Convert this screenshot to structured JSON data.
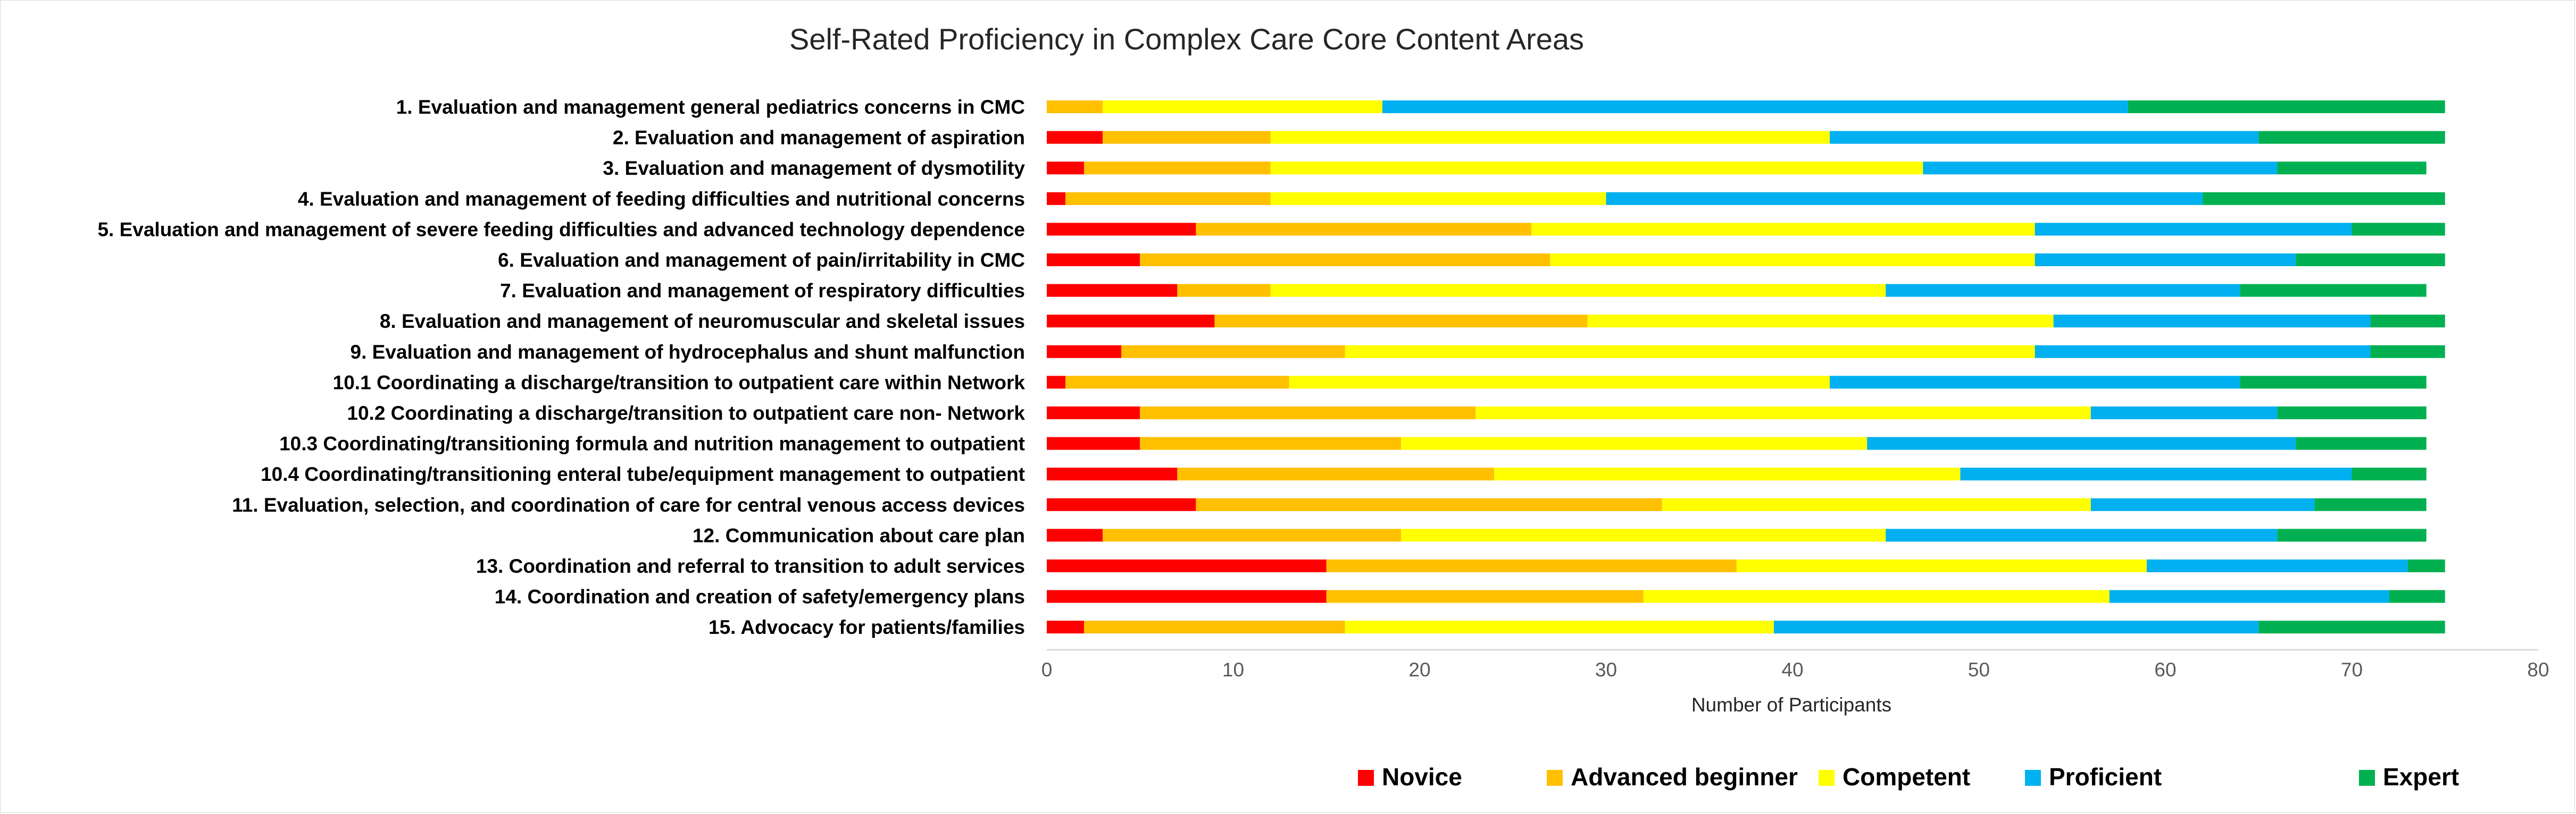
{
  "chart_data": {
    "type": "bar",
    "orientation": "horizontal",
    "stacked": true,
    "title": "Self-Rated Proficiency in Complex Care Core Content Areas",
    "xlabel": "Number of Participants",
    "ylabel": "",
    "xlim": [
      0,
      80
    ],
    "x_ticks": [
      "0",
      "10",
      "20",
      "30",
      "40",
      "50",
      "60",
      "70",
      "80"
    ],
    "grid": false,
    "legend_position": "bottom-right",
    "categories": [
      "1. Evaluation and management general pediatrics concerns in CMC",
      "2. Evaluation and management of aspiration",
      "3.  Evaluation and management of dysmotility",
      "4.  Evaluation and management of feeding difficulties and nutritional concerns",
      "5. Evaluation and management of severe feeding difficulties and advanced technology dependence",
      "6. Evaluation and management of pain/irritability in CMC",
      "7. Evaluation and management of respiratory difficulties",
      "8. Evaluation and management of neuromuscular and skeletal issues",
      "9. Evaluation and management of hydrocephalus and shunt malfunction",
      "10.1 Coordinating a discharge/transition to outpatient care within  Network",
      "10.2 Coordinating a discharge/transition to outpatient care non- Network",
      "10.3 Coordinating/transitioning formula and nutrition management to outpatient",
      "10.4 Coordinating/transitioning enteral tube/equipment management to outpatient",
      "11. Evaluation, selection, and coordination of care for central venous access devices",
      "12. Communication about care plan",
      "13. Coordination and referral to transition to adult services",
      "14. Coordination and creation of safety/emergency plans",
      "15. Advocacy for patients/families"
    ],
    "series": [
      {
        "name": "Novice",
        "color": "#ff0000",
        "values": [
          0,
          3,
          2,
          1,
          8,
          5,
          7,
          9,
          4,
          1,
          5,
          5,
          7,
          8,
          3,
          15,
          15,
          2
        ]
      },
      {
        "name": "Advanced beginner",
        "color": "#ffc000",
        "values": [
          3,
          9,
          10,
          11,
          18,
          22,
          5,
          20,
          12,
          12,
          18,
          14,
          17,
          25,
          16,
          22,
          17,
          14
        ]
      },
      {
        "name": "Competent",
        "color": "#ffff00",
        "values": [
          15,
          30,
          35,
          18,
          27,
          26,
          33,
          25,
          37,
          29,
          33,
          25,
          25,
          23,
          26,
          22,
          25,
          23
        ]
      },
      {
        "name": "Proficient",
        "color": "#00b0f0",
        "values": [
          40,
          23,
          19,
          32,
          17,
          14,
          19,
          17,
          18,
          22,
          10,
          23,
          21,
          12,
          21,
          14,
          15,
          26
        ]
      },
      {
        "name": "Expert",
        "color": "#00b050",
        "values": [
          17,
          10,
          8,
          13,
          5,
          8,
          10,
          4,
          4,
          10,
          8,
          7,
          4,
          6,
          8,
          2,
          3,
          10
        ]
      }
    ]
  }
}
